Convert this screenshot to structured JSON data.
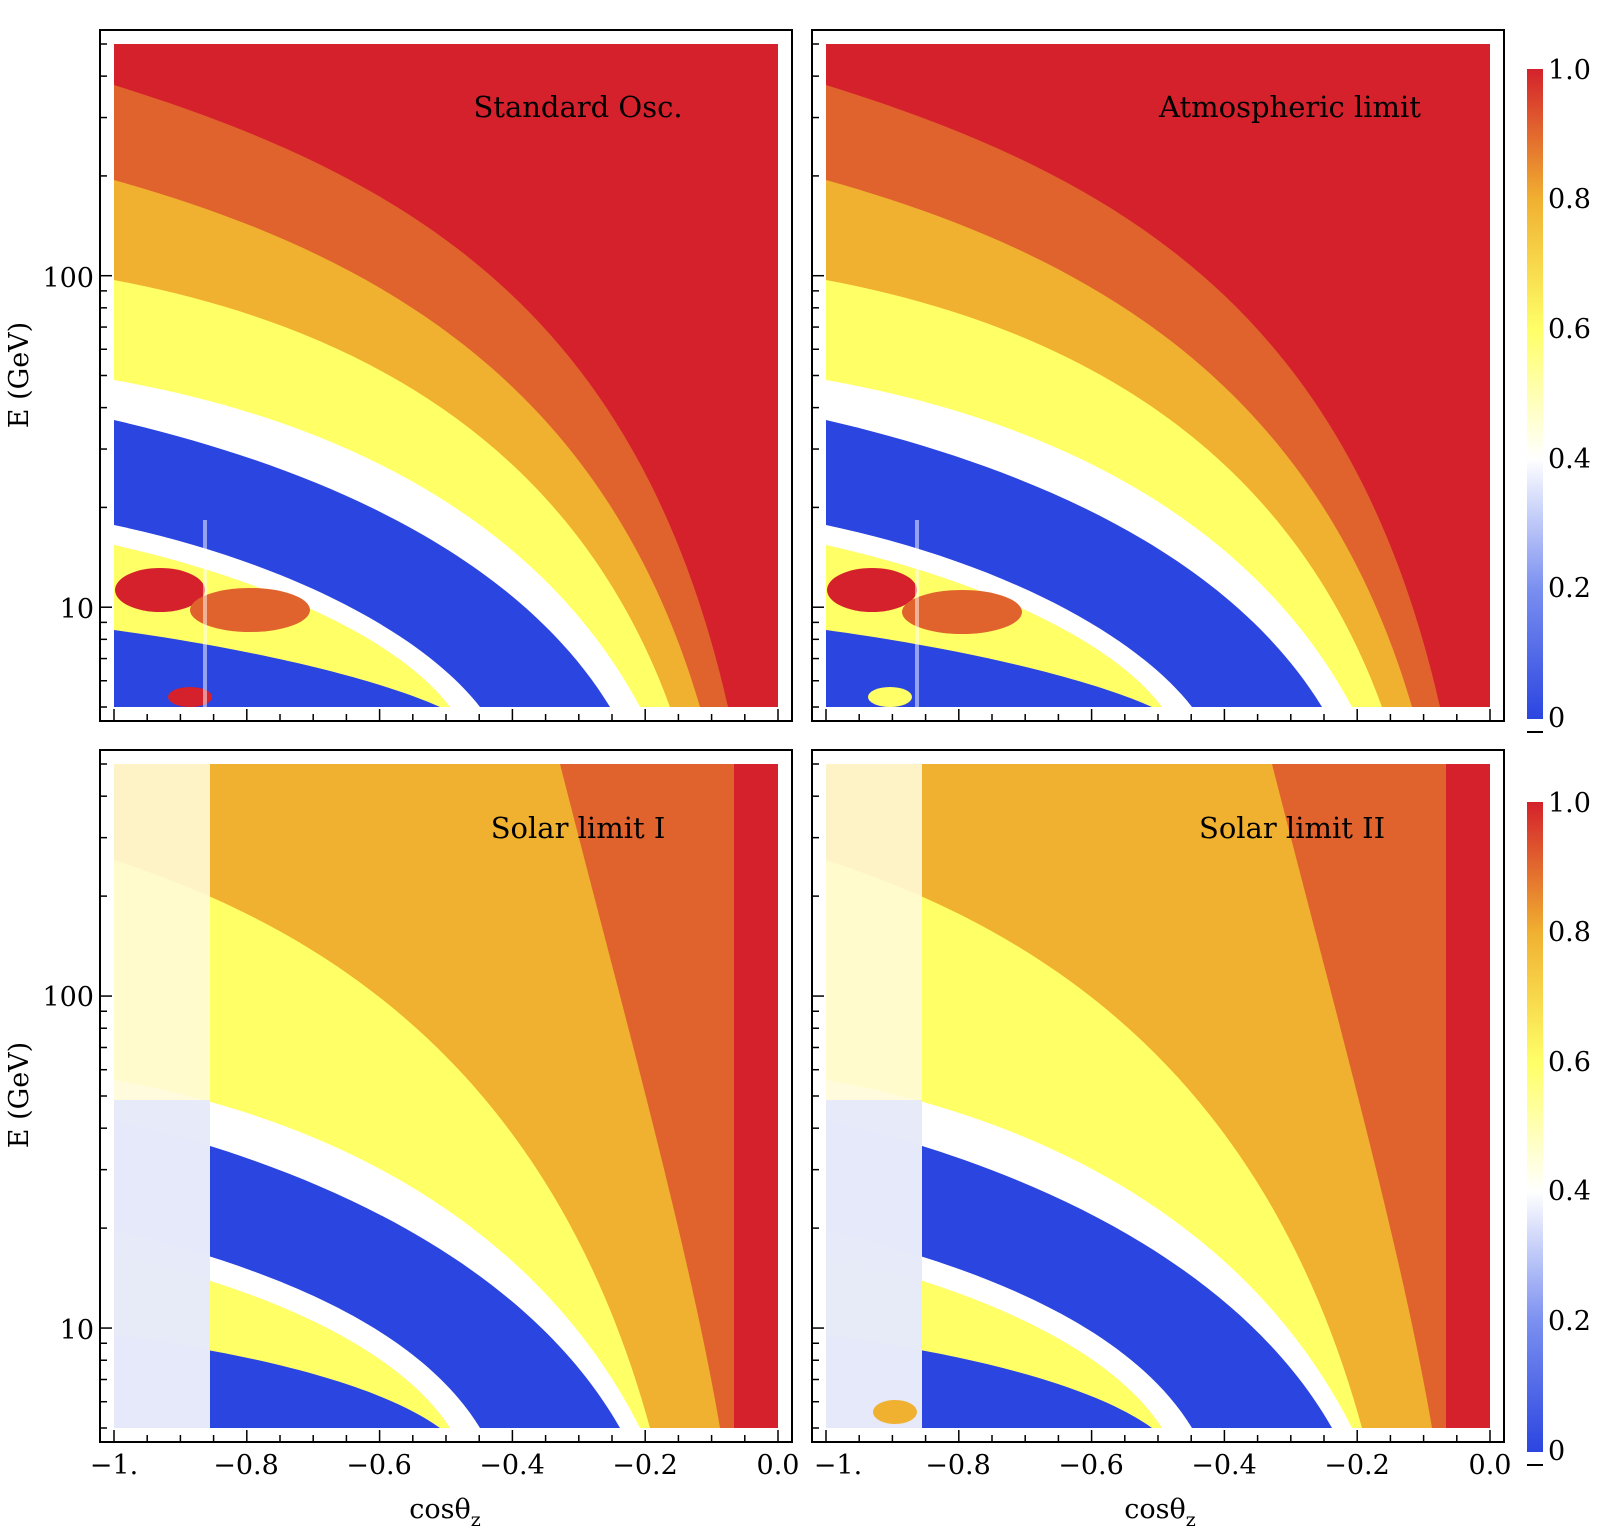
{
  "chart_data": [
    {
      "type": "heatmap",
      "title": "Standard Osc.",
      "xlabel": "",
      "ylabel": "E (GeV)",
      "xlim": [
        -1.0,
        0.0
      ],
      "ylim": [
        5,
        500
      ],
      "y_scale": "log",
      "x_ticks": [],
      "y_ticks": [
        "10",
        "100"
      ],
      "z_range": [
        0,
        1
      ]
    },
    {
      "type": "heatmap",
      "title": "Atmospheric limit",
      "xlabel": "",
      "ylabel": "",
      "xlim": [
        -1.0,
        0.0
      ],
      "ylim": [
        5,
        500
      ],
      "y_scale": "log",
      "x_ticks": [],
      "y_ticks": [],
      "z_range": [
        0,
        1
      ]
    },
    {
      "type": "heatmap",
      "title": "Solar limit I",
      "xlabel": "cosθz",
      "ylabel": "E (GeV)",
      "xlim": [
        -1.0,
        0.0
      ],
      "ylim": [
        5,
        500
      ],
      "y_scale": "log",
      "x_ticks": [
        "−1.",
        "−0.8",
        "−0.6",
        "−0.4",
        "−0.2",
        "0.0"
      ],
      "y_ticks": [
        "10",
        "100"
      ],
      "z_range": [
        0,
        1
      ]
    },
    {
      "type": "heatmap",
      "title": "Solar limit II",
      "xlabel": "cosθz",
      "ylabel": "",
      "xlim": [
        -1.0,
        0.0
      ],
      "ylim": [
        5,
        500
      ],
      "y_scale": "log",
      "x_ticks": [
        "−1.",
        "−0.8",
        "−0.6",
        "−0.4",
        "−0.2",
        "0.0"
      ],
      "y_ticks": [],
      "z_range": [
        0,
        1
      ]
    }
  ],
  "colorbar": {
    "ticks": [
      "0",
      "0.2",
      "0.4",
      "0.6",
      "0.8",
      "1.0"
    ],
    "colors": [
      "#2b45e0",
      "#7a8ff0",
      "#ffffff",
      "#ffff66",
      "#f0b030",
      "#d4212c"
    ]
  },
  "labels": {
    "ylabel_top": "E (GeV)",
    "ylabel_bottom": "E (GeV)",
    "xlabel_left_main": "cosθ",
    "xlabel_left_sub": "z",
    "xlabel_right_main": "cosθ",
    "xlabel_right_sub": "z",
    "title_p1": "Standard Osc.",
    "title_p2": "Atmospheric limit",
    "title_p3": "Solar limit I",
    "title_p4": "Solar limit II",
    "ytick_p1_10": "10",
    "ytick_p1_100": "100",
    "ytick_p3_10": "10",
    "ytick_p3_100": "100",
    "cb_top_0": "0",
    "cb_top_02": "0.2",
    "cb_top_04": "0.4",
    "cb_top_06": "0.6",
    "cb_top_08": "0.8",
    "cb_top_10": "1.0",
    "cb_bot_0": "0",
    "cb_bot_02": "0.2",
    "cb_bot_04": "0.4",
    "cb_bot_06": "0.6",
    "cb_bot_08": "0.8",
    "cb_bot_10": "1.0",
    "xt_l_0": "−1.",
    "xt_l_1": "−0.8",
    "xt_l_2": "−0.6",
    "xt_l_3": "−0.4",
    "xt_l_4": "−0.2",
    "xt_l_5": "0.0",
    "xt_r_0": "−1.",
    "xt_r_1": "−0.8",
    "xt_r_2": "−0.6",
    "xt_r_3": "−0.4",
    "xt_r_4": "−0.2",
    "xt_r_5": "0.0"
  }
}
